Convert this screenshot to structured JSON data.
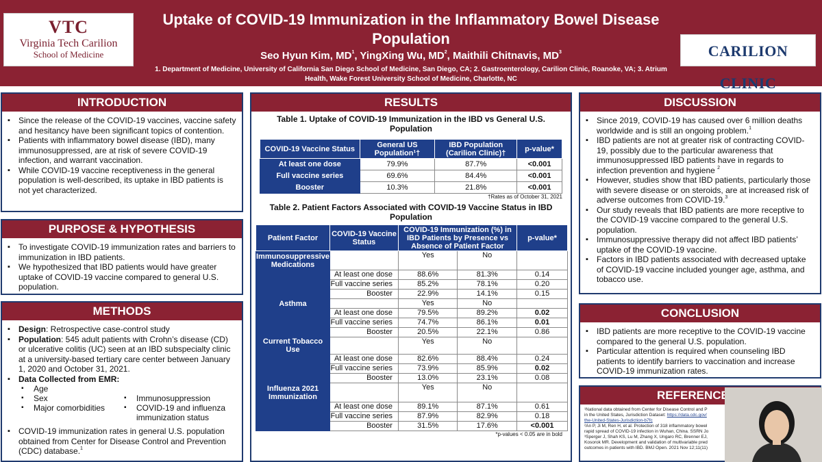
{
  "header": {
    "title": "Uptake of COVID-19 Immunization in the Inflammatory Bowel Disease Population",
    "authors": [
      {
        "name": "Seo Hyun Kim, MD",
        "sup": "1"
      },
      {
        "name": "YingXing Wu, MD",
        "sup": "2"
      },
      {
        "name": "Maithili Chitnavis, MD",
        "sup": "3"
      }
    ],
    "affiliations": "1. Department of Medicine, University of California San Diego School of Medicine, San Diego, CA; 2. Gastroenterology, Carilion Clinic, Roanoke, VA; 3. Atrium Health, Wake Forest University School of Medicine, Charlotte, NC",
    "logo_left": {
      "mono": "VTC",
      "line1": "Virginia Tech Carilion",
      "line2": "School of Medicine"
    },
    "logo_right": "CARILION CLINIC"
  },
  "introduction": {
    "title": "INTRODUCTION",
    "bullets": [
      "Since the release of the COVID-19 vaccines, vaccine safety and hesitancy have been significant topics of contention.",
      "Patients with inflammatory bowel disease (IBD), many immunosuppressed, are at risk of severe COVID-19 infection, and warrant vaccination.",
      "While COVID-19 vaccine receptiveness in the general population is well-described, its uptake in IBD patients is not yet characterized."
    ]
  },
  "purpose": {
    "title": "PURPOSE & HYPOTHESIS",
    "bullets": [
      "To investigate COVID-19 immunization rates and barriers to immunization in IBD patients.",
      "We hypothesized that IBD patients would have greater uptake of COVID-19 vaccine compared to general U.S. population."
    ]
  },
  "methods": {
    "title": "METHODS",
    "design_label": "Design",
    "design_text": ": Retrospective case-control study",
    "population_label": "Population",
    "population_text": ": 545 adult patients with Crohn’s disease (CD) or ulcerative colitis (UC) seen at an IBD subspecialty clinic at a university-based tertiary care center between January 1, 2020 and October 31, 2021.",
    "data_label": "Data Collected from EMR:",
    "data_col1": [
      "Age",
      "Sex",
      "Major comorbidities"
    ],
    "data_col2": [
      "Immunosuppression",
      "COVID-19 and influenza immunization status"
    ],
    "cdc_text": "COVID-19 immunization rates in general U.S. population obtained from Center for Disease Control and Prevention (CDC) database.",
    "cdc_sup": "1"
  },
  "results": {
    "title": "RESULTS",
    "table1": {
      "caption": "Table 1. Uptake of COVID-19 Immunization in the IBD vs General U.S. Population",
      "headers": [
        "COVID-19 Vaccine Status",
        "General US Population¹†",
        "IBD Population (Carilion Clinic)†",
        "p-value*"
      ],
      "rows": [
        {
          "label": "At least one dose",
          "us": "79.9%",
          "ibd": "87.7%",
          "p": "<0.001"
        },
        {
          "label": "Full vaccine series",
          "us": "69.6%",
          "ibd": "84.4%",
          "p": "<0.001"
        },
        {
          "label": "Booster",
          "us": "10.3%",
          "ibd": "21.8%",
          "p": "<0.001"
        }
      ],
      "note": "†Rates as of October 31, 2021"
    },
    "table2": {
      "caption": "Table 2. Patient Factors Associated with COVID-19 Vaccine Status in IBD Population",
      "headers": [
        "Patient Factor",
        "COVID-19 Vaccine Status",
        "COVID-19 Immunization (%) in IBD Patients by Presence vs Absence of Patient Factor",
        "p-value*"
      ],
      "yes": "Yes",
      "no": "No",
      "groups": [
        {
          "factor": "Immunosuppressive Medications",
          "rows": [
            {
              "status": "At least one dose",
              "yes": "88.6%",
              "no": "81.3%",
              "p": "0.14",
              "bold": false
            },
            {
              "status": "Full vaccine series",
              "yes": "85.2%",
              "no": "78.1%",
              "p": "0.20",
              "bold": false
            },
            {
              "status": "Booster",
              "yes": "22.9%",
              "no": "14.1%",
              "p": "0.15",
              "bold": false
            }
          ]
        },
        {
          "factor": "Asthma",
          "rows": [
            {
              "status": "At least one dose",
              "yes": "79.5%",
              "no": "89.2%",
              "p": "0.02",
              "bold": true
            },
            {
              "status": "Full vaccine series",
              "yes": "74.7%",
              "no": "86.1%",
              "p": "0.01",
              "bold": true
            },
            {
              "status": "Booster",
              "yes": "20.5%",
              "no": "22.1%",
              "p": "0.86",
              "bold": false
            }
          ]
        },
        {
          "factor": "Current Tobacco Use",
          "rows": [
            {
              "status": "At least one dose",
              "yes": "82.6%",
              "no": "88.4%",
              "p": "0.24",
              "bold": false
            },
            {
              "status": "Full vaccine series",
              "yes": "73.9%",
              "no": "85.9%",
              "p": "0.02",
              "bold": true
            },
            {
              "status": "Booster",
              "yes": "13.0%",
              "no": "23.1%",
              "p": "0.08",
              "bold": false
            }
          ]
        },
        {
          "factor": "Influenza 2021 Immunization",
          "rows": [
            {
              "status": "At least one dose",
              "yes": "89.1%",
              "no": "87.1%",
              "p": "0.61",
              "bold": false
            },
            {
              "status": "Full vaccine series",
              "yes": "87.9%",
              "no": "82.9%",
              "p": "0.18",
              "bold": false
            },
            {
              "status": "Booster",
              "yes": "31.5%",
              "no": "17.6%",
              "p": "<0.001",
              "bold": true
            }
          ]
        }
      ],
      "note": "*p-values < 0.05 are in bold"
    }
  },
  "discussion": {
    "title": "DISCUSSION",
    "bullets": [
      {
        "text": "Since 2019, COVID-19 has caused over 6 million deaths worldwide and is still an ongoing problem.",
        "sup": "1"
      },
      {
        "text": "IBD patients are not at greater risk of contracting COVID-19, possibly due to the particular awareness that immunosuppressed IBD patients have in regards to infection prevention and hygiene ",
        "sup": "2"
      },
      {
        "text": "However, studies show that IBD patients, particularly those with severe disease or on steroids, are at increased risk of adverse outcomes from COVID-19.",
        "sup": "3"
      },
      {
        "text": "Our study reveals that IBD patients are more receptive to the COVID-19 vaccine compared to the general U.S. population.",
        "sup": ""
      },
      {
        "text": "Immunosuppressive therapy did not affect IBD patients’ uptake of the COVID-19 vaccine.",
        "sup": ""
      },
      {
        "text": "Factors in IBD patients associated with decreased uptake of COVID-19 vaccine included younger age, asthma, and tobacco use.",
        "sup": ""
      }
    ]
  },
  "conclusion": {
    "title": "CONCLUSION",
    "bullets": [
      "IBD patients are more receptive to the COVID-19 vaccine compared to the general U.S. population.",
      "Particular attention is required when counseling IBD patients to identify barriers to vaccination and increase COVID-19 immunization rates."
    ]
  },
  "references": {
    "title": "REFERENCES",
    "r1": "¹National data obtained from Center for Disease Control and P",
    "r1b": "in the United States, Jurisdiction Dataset: ",
    "r1_link": "https://data.cdc.gov/",
    "r1_link2": "the-United-States-Jurisdiction-b7fc",
    "r2": "²An P, Ji M, Ren H, et al. Protection of 318 inflammatory bowel",
    "r2b": "rapid spread of COVID-19 infection in Wuhan, China. SSRN Jo",
    "r3": "³Sperger J, Shah KS, Lu M, Zhang X, Ungaro RC, Brenner EJ,",
    "r3b": "Kosorok MR. Development and validation of multivariable pred",
    "r3c": "outcomes in patients with IBD. BMJ Open. 2021 Nov 12;11(11)"
  }
}
